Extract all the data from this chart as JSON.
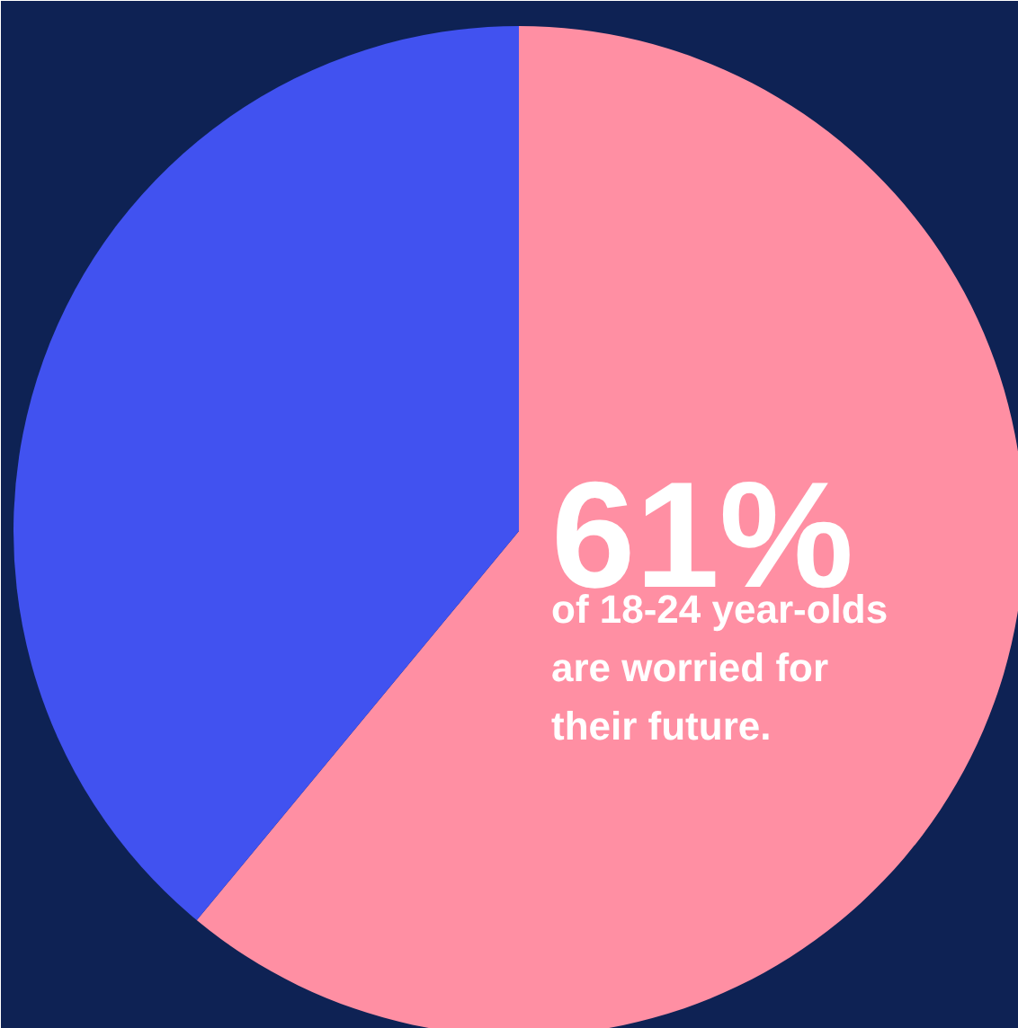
{
  "chart_data": {
    "type": "pie",
    "categories": [
      null,
      null
    ],
    "values": [
      61,
      39
    ],
    "colors": [
      "#ff8fa3",
      "#4152f0"
    ],
    "value_labels": [
      "61%",
      null
    ],
    "annotations": [
      "of 18-24 year-olds are worried for their future."
    ]
  }
}
